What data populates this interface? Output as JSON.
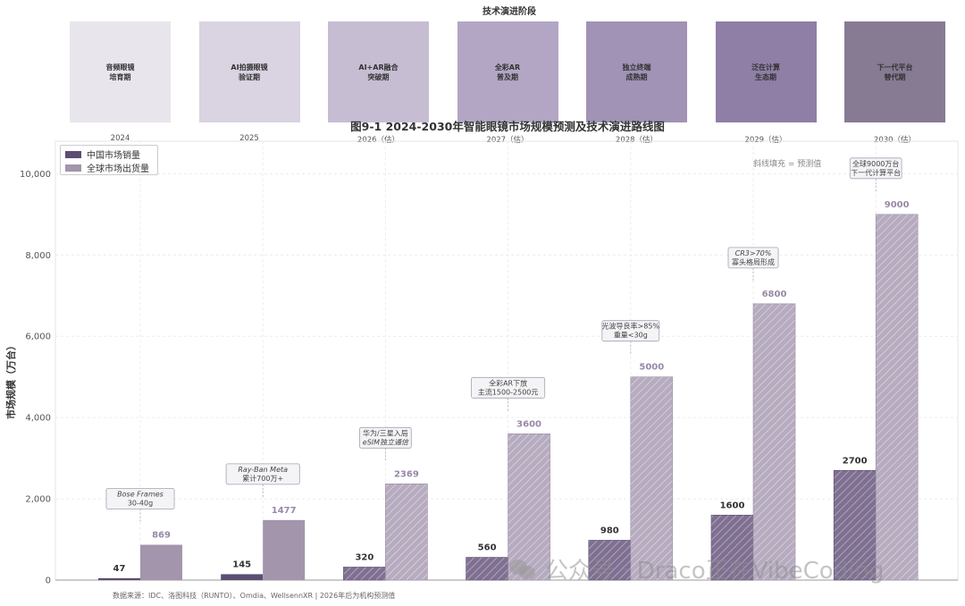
{
  "stages": {
    "title": "技术演进阶段",
    "items": [
      {
        "label": "音频眼镜\n培育期",
        "year": "2024",
        "color": "#e8e5ed"
      },
      {
        "label": "AI拍摄眼镜\n验证期",
        "year": "2025",
        "color": "#d9d3e2"
      },
      {
        "label": "AI+AR融合\n突破期",
        "year": "2026（估）",
        "color": "#c6bdd3"
      },
      {
        "label": "全彩AR\n普及期",
        "year": "2027（估）",
        "color": "#b3a6c4"
      },
      {
        "label": "独立终端\n成熟期",
        "year": "2028（估）",
        "color": "#a093b5"
      },
      {
        "label": "泛在计算\n生态期",
        "year": "2029（估）",
        "color": "#8f7ea6"
      },
      {
        "label": "下一代平台\n替代期",
        "year": "2030（估）",
        "color": "#877a93"
      }
    ]
  },
  "chart_data": {
    "type": "bar",
    "title": "图9-1  2024-2030年智能眼镜市场规模预测及技术演进路线图",
    "ylabel": "市场规模（万台）",
    "xlabel": "",
    "ylim": [
      0,
      10800
    ],
    "yticks": [
      "0",
      "2,000",
      "4,000",
      "6,000",
      "8,000",
      "10,000"
    ],
    "ytick_values": [
      0,
      2000,
      4000,
      6000,
      8000,
      10000
    ],
    "grid": true,
    "legend_position": "top-left",
    "categories": [
      "2024",
      "2025",
      "2026（估）",
      "2027（估）",
      "2028（估）",
      "2029（估）",
      "2030（估）"
    ],
    "forecast_start_index": 2,
    "series": [
      {
        "name": "中国市场销量",
        "color": "#5c4d73",
        "label_color": "#333333",
        "values": [
          47,
          145,
          320,
          560,
          980,
          1600,
          2700
        ],
        "labels": [
          "47",
          "145",
          "320",
          "560",
          "980",
          "1600",
          "2700"
        ]
      },
      {
        "name": "全球市场出货量",
        "color": "#a295ac",
        "label_color": "#9888a8",
        "values": [
          869,
          1477,
          2369,
          3600,
          5000,
          6800,
          9000
        ],
        "labels": [
          "869",
          "1477",
          "2369",
          "3600",
          "5000",
          "6800",
          "9000"
        ]
      }
    ],
    "annotations": [
      {
        "index": 0,
        "lines": [
          "Bose Frames",
          "30-40g"
        ],
        "italic": [
          true,
          false
        ]
      },
      {
        "index": 1,
        "lines": [
          "Ray-Ban Meta",
          "累计700万+"
        ],
        "italic": [
          true,
          false
        ]
      },
      {
        "index": 2,
        "lines": [
          "华为/三星入局",
          "eSIM独立通信"
        ],
        "italic": [
          false,
          true
        ]
      },
      {
        "index": 3,
        "lines": [
          "全彩AR下放",
          "主流1500-2500元"
        ],
        "italic": [
          false,
          false
        ]
      },
      {
        "index": 4,
        "lines": [
          "光波导良率>85%",
          "重量<30g"
        ],
        "italic": [
          false,
          false
        ]
      },
      {
        "index": 5,
        "lines": [
          "CR3>70%",
          "寡头格局形成"
        ],
        "italic": [
          true,
          false
        ]
      },
      {
        "index": 6,
        "lines": [
          "全球9000万台",
          "下一代计算平台"
        ],
        "italic": [
          false,
          false
        ]
      }
    ],
    "forecast_note": "斜线填充 = 预测值"
  },
  "footer": "数据来源：IDC、洛图科技（RUNTO）、Omdia、WellsennXR | 2026年后为机构预测值",
  "watermark": "公众号 · Draco正在VibeCoding"
}
